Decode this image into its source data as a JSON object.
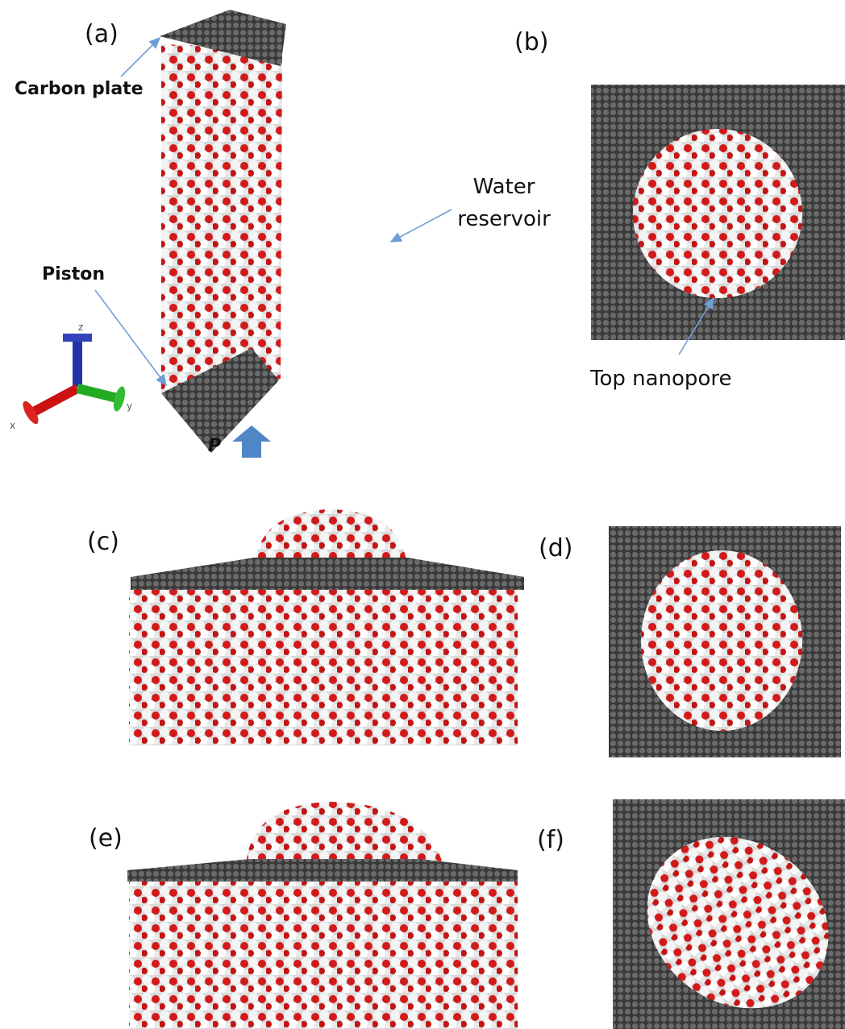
{
  "panels": [
    {
      "label": "(a)"
    },
    {
      "label": "(b)"
    },
    {
      "label": "(c)"
    },
    {
      "label": "(d)"
    },
    {
      "label": "(e)"
    },
    {
      "label": "(f)"
    }
  ],
  "annotations": {
    "carbon_plate": "Carbon plate",
    "piston": "Piston",
    "water_reservoir": [
      "Water",
      "reservoir"
    ],
    "top_nanopore": "Top nanopore",
    "pressure": "P"
  },
  "axes": {
    "x": "x",
    "y": "y",
    "z": "z"
  }
}
